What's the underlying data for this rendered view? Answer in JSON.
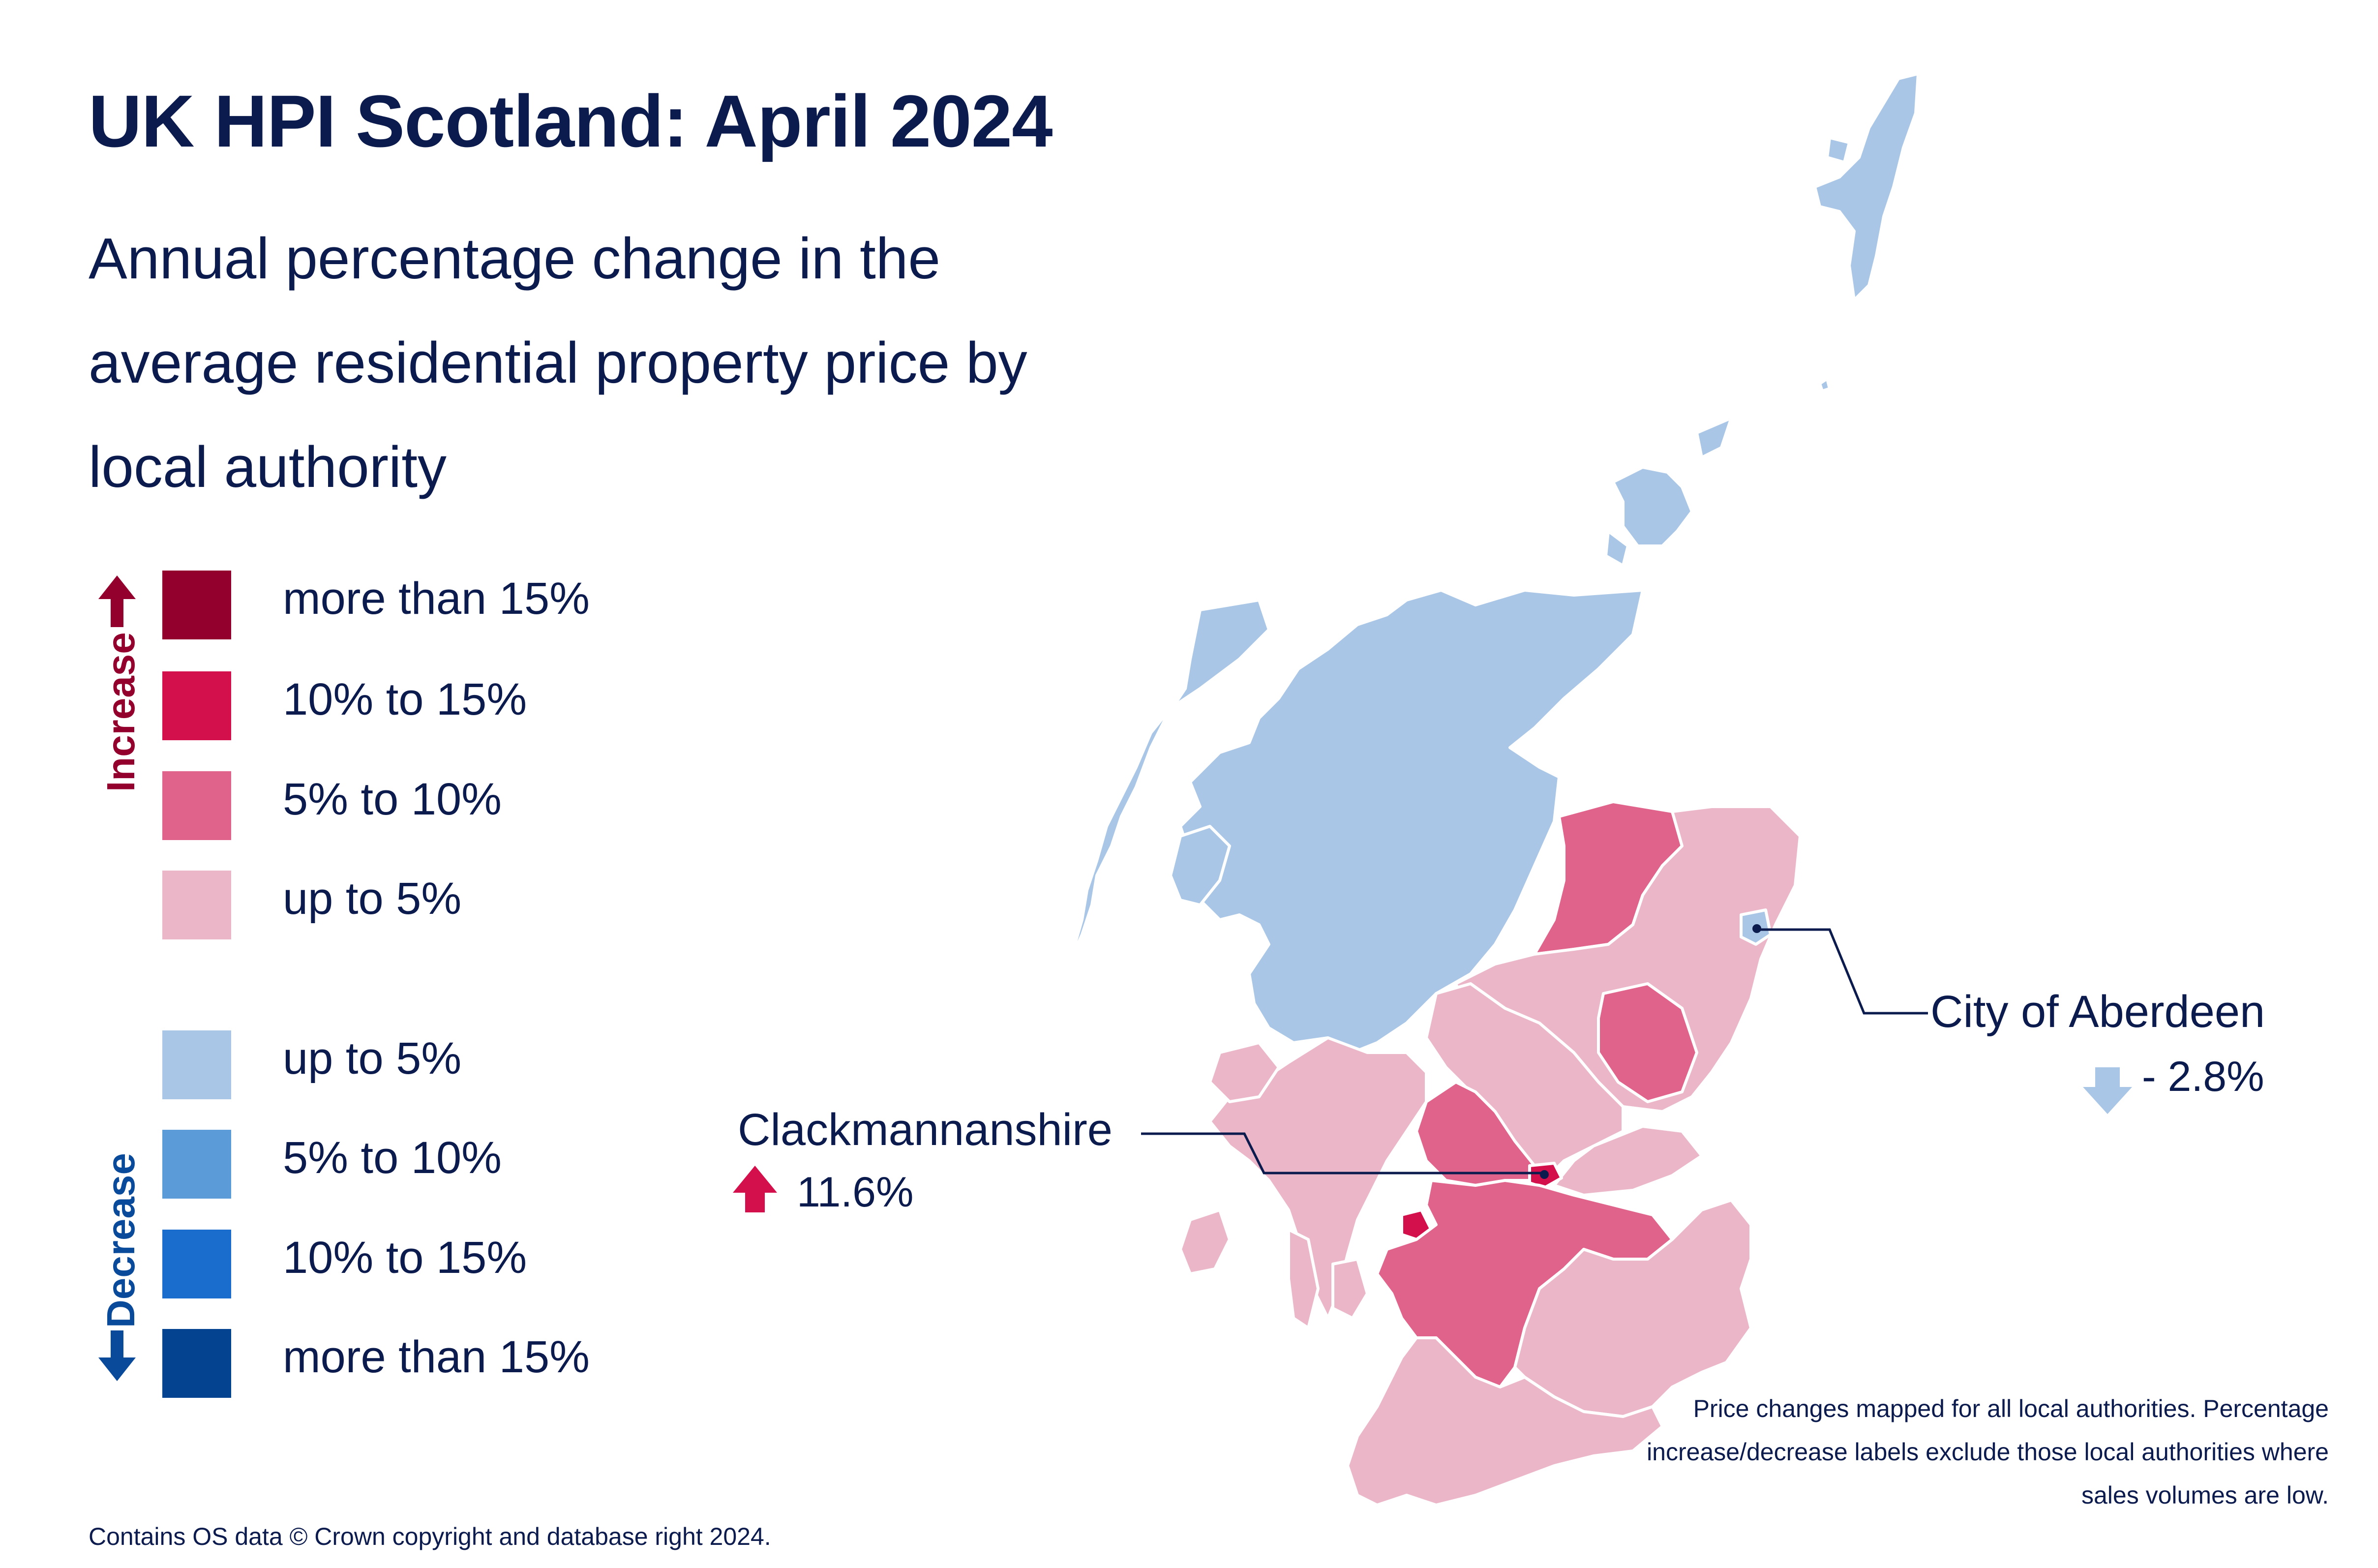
{
  "title": "UK HPI Scotland: April 2024",
  "subtitle": "Annual percentage change in the average residential property price by local authority",
  "legend": {
    "increase_label": "Increase",
    "decrease_label": "Decrease",
    "increase": [
      {
        "label": "more than 15%",
        "color": "#94002e"
      },
      {
        "label": "10% to 15%",
        "color": "#d3104c"
      },
      {
        "label": "5% to 10%",
        "color": "#df638b"
      },
      {
        "label": "up to 5%",
        "color": "#ebb6c8"
      }
    ],
    "decrease": [
      {
        "label": "up to 5%",
        "color": "#a9c6e6"
      },
      {
        "label": "5% to 10%",
        "color": "#5b9bd8"
      },
      {
        "label": "10% to 15%",
        "color": "#1a6ccd"
      },
      {
        "label": "more than 15%",
        "color": "#03438f"
      }
    ]
  },
  "callouts": {
    "aberdeen": {
      "name": "City of Aberdeen",
      "value": "- 2.8%",
      "direction": "decrease",
      "icon": "arrow-down-icon"
    },
    "clackmannanshire": {
      "name": "Clackmannanshire",
      "value": "11.6%",
      "direction": "increase",
      "icon": "arrow-up-icon"
    }
  },
  "note": "Price changes mapped for all local authorities. Percentage increase/decrease labels exclude those local authorities where sales volumes are low.",
  "footer": "Contains OS data © Crown copyright and database right 2024."
}
